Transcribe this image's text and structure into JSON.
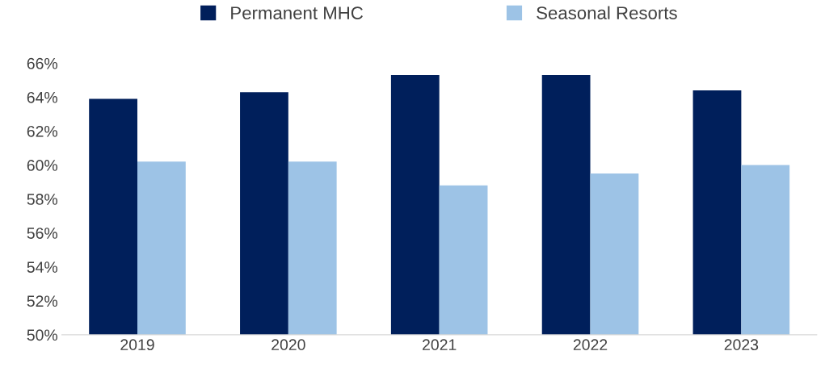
{
  "chart_data": {
    "type": "bar",
    "categories": [
      "2019",
      "2020",
      "2021",
      "2022",
      "2023"
    ],
    "series": [
      {
        "name": "Permanent MHC",
        "color": "#001f5b",
        "values": [
          63.9,
          64.3,
          65.3,
          65.3,
          64.4
        ]
      },
      {
        "name": "Seasonal Resorts",
        "color": "#9dc3e6",
        "values": [
          60.2,
          60.2,
          58.8,
          59.5,
          60.0
        ]
      }
    ],
    "ylim": [
      50,
      66
    ],
    "yticks": [
      {
        "value": 50,
        "label": "50%"
      },
      {
        "value": 52,
        "label": "52%"
      },
      {
        "value": 54,
        "label": "54%"
      },
      {
        "value": 56,
        "label": "56%"
      },
      {
        "value": 58,
        "label": "58%"
      },
      {
        "value": 60,
        "label": "60%"
      },
      {
        "value": 62,
        "label": "62%"
      },
      {
        "value": 64,
        "label": "64%"
      },
      {
        "value": 66,
        "label": "66%"
      }
    ],
    "grid": false,
    "legend": "top"
  }
}
